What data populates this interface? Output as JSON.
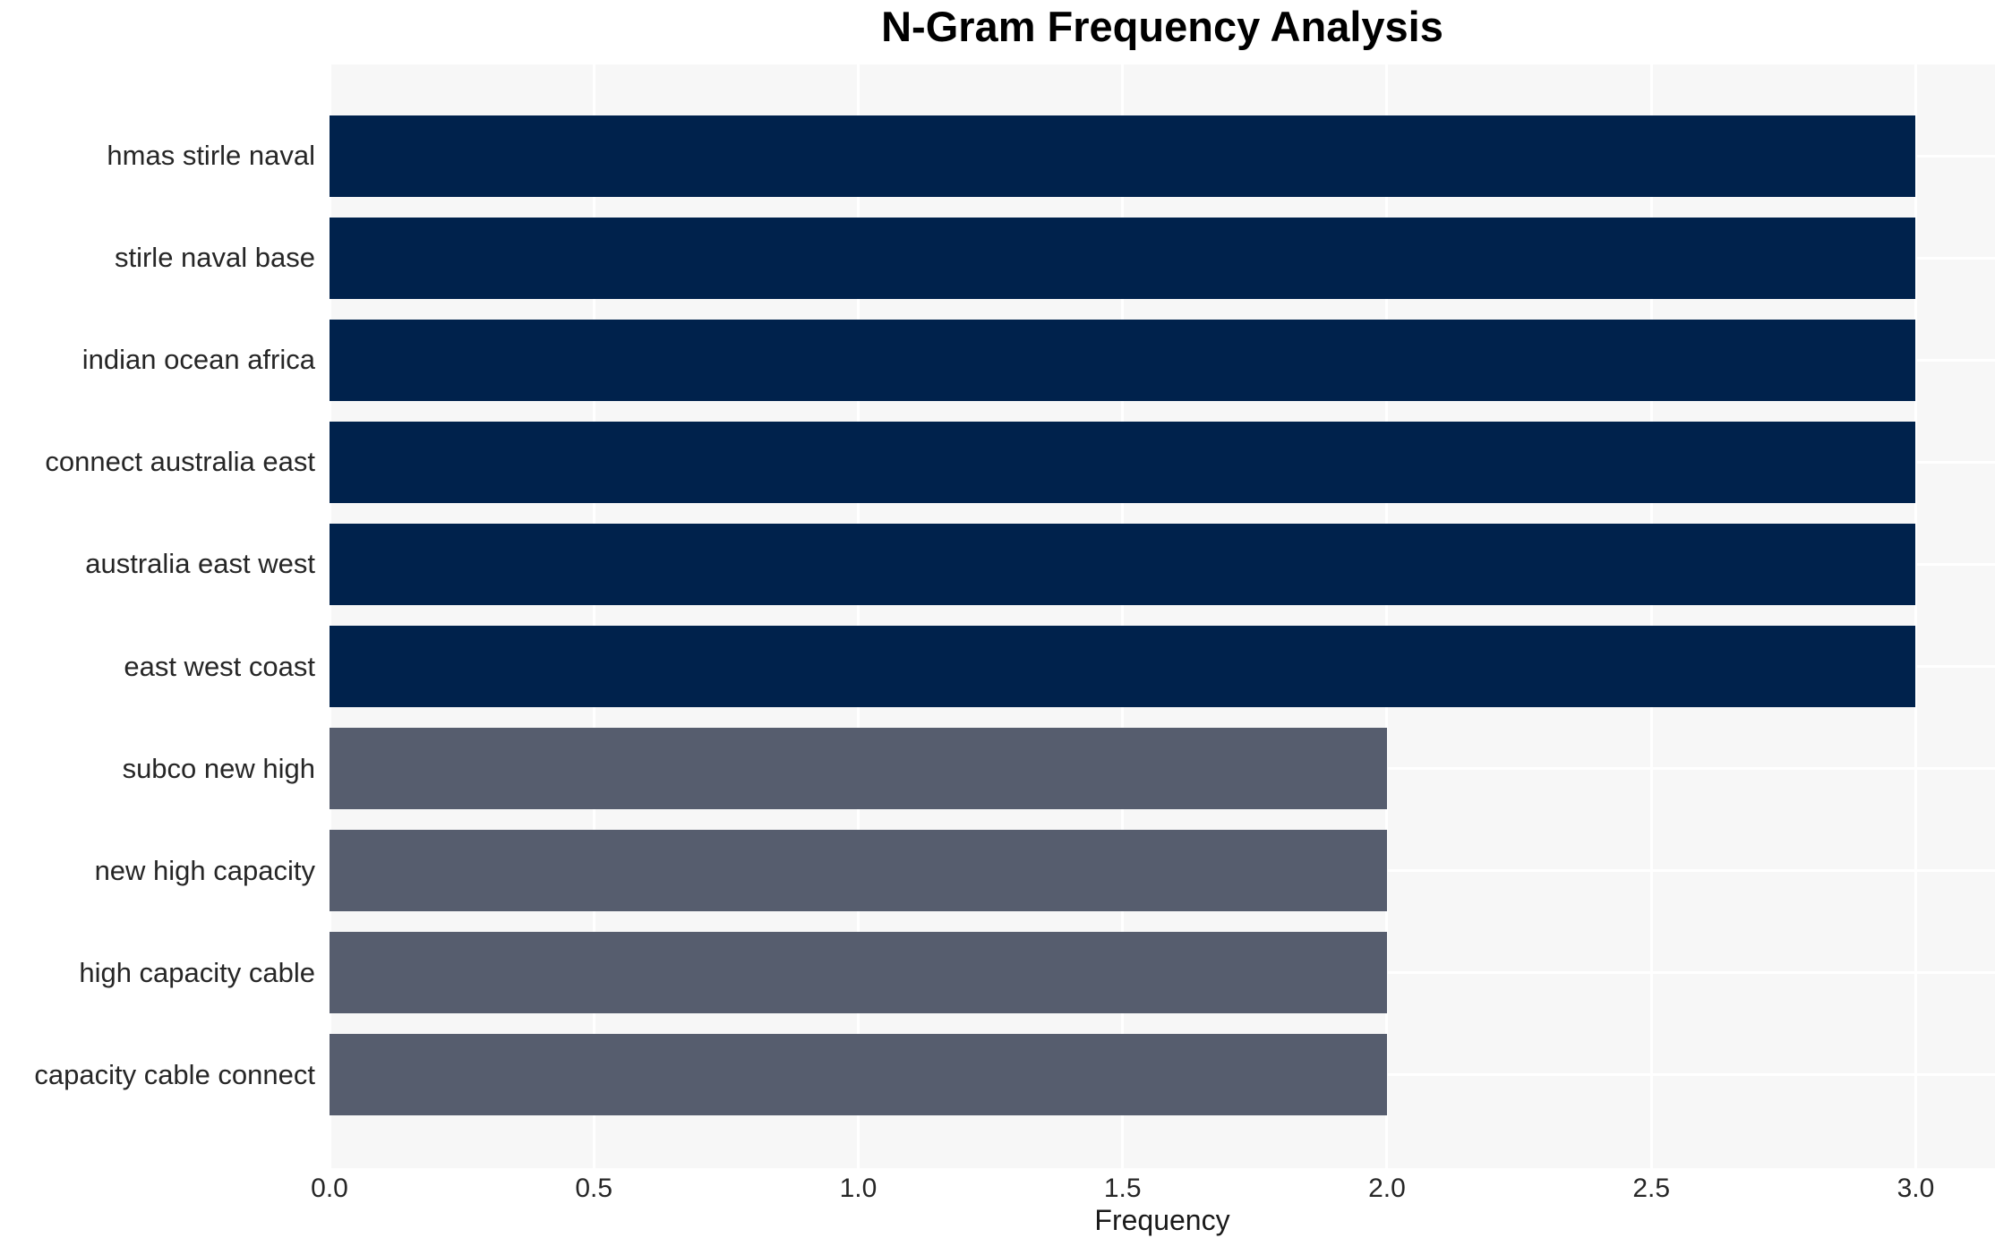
{
  "chart_data": {
    "type": "bar",
    "orientation": "horizontal",
    "title": "N-Gram Frequency Analysis",
    "xlabel": "Frequency",
    "ylabel": "",
    "categories": [
      "hmas stirle naval",
      "stirle naval base",
      "indian ocean africa",
      "connect australia east",
      "australia east west",
      "east west coast",
      "subco new high",
      "new high capacity",
      "high capacity cable",
      "capacity cable connect"
    ],
    "values": [
      3,
      3,
      3,
      3,
      3,
      3,
      2,
      2,
      2,
      2
    ],
    "bar_colors": [
      "#00224c",
      "#00224c",
      "#00224c",
      "#00224c",
      "#00224c",
      "#00224c",
      "#565d6e",
      "#565d6e",
      "#565d6e",
      "#565d6e"
    ],
    "xlim": [
      0,
      3.15
    ],
    "xtick_values": [
      0.0,
      0.5,
      1.0,
      1.5,
      2.0,
      2.5,
      3.0
    ],
    "xtick_labels": [
      "0.0",
      "0.5",
      "1.0",
      "1.5",
      "2.0",
      "2.5",
      "3.0"
    ],
    "grid": true,
    "grid_color": "#ffffff",
    "plot_background": "#f7f7f7",
    "figure_background": "#ffffff",
    "legend": false,
    "colors": {
      "high_frequency_bar": "#00224c",
      "low_frequency_bar": "#565d6e",
      "tick_text": "#262626",
      "title_text": "#000000"
    }
  }
}
